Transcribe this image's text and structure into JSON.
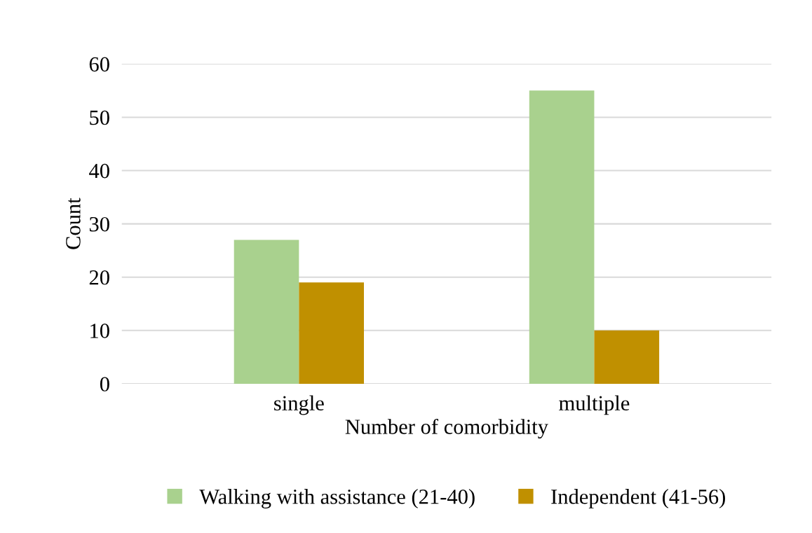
{
  "chart_data": {
    "type": "bar",
    "xlabel": "Number of comorbidity",
    "ylabel": "Count",
    "categories": [
      "single",
      "multiple"
    ],
    "series": [
      {
        "name": "Walking with assistance (21-40)",
        "color": "#a9d18e",
        "values": [
          27,
          55
        ]
      },
      {
        "name": "Independent (41-56)",
        "color": "#c09000",
        "values": [
          19,
          10
        ]
      }
    ],
    "ylim": [
      0,
      60
    ],
    "yticks": [
      0,
      10,
      20,
      30,
      40,
      50,
      60
    ],
    "grid": "y",
    "legend": "bottom"
  }
}
